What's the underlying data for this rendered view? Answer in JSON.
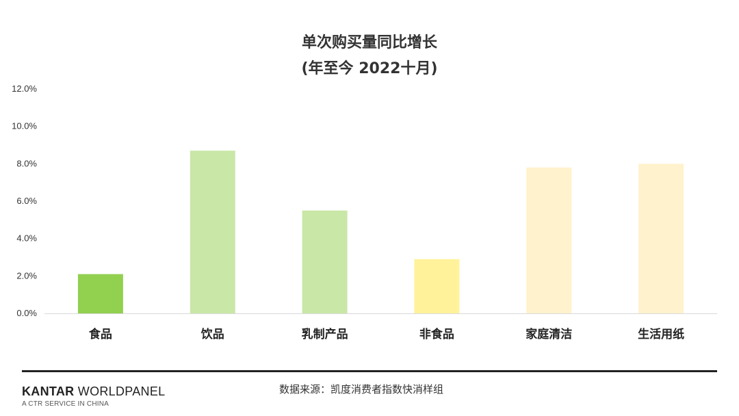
{
  "chart_data": {
    "type": "bar",
    "title": "单次购买量同比增长",
    "subtitle": "(年至今 2022十月)",
    "categories": [
      "食品",
      "饮品",
      "乳制产品",
      "非食品",
      "家庭清洁",
      "生活用纸"
    ],
    "values": [
      2.1,
      8.7,
      5.5,
      2.9,
      7.8,
      8.0
    ],
    "bar_colors": [
      "#92d050",
      "#c9e7a7",
      "#c9e7a7",
      "#fff29b",
      "#fff2cc",
      "#fff2cc"
    ],
    "ylim": [
      0,
      12
    ],
    "yticks": [
      0,
      2,
      4,
      6,
      8,
      10,
      12
    ],
    "ytick_labels": [
      "0.0%",
      "2.0%",
      "4.0%",
      "6.0%",
      "8.0%",
      "10.0%",
      "12.0%"
    ],
    "xlabel": "",
    "ylabel": "",
    "grid": false
  },
  "footer": {
    "brand_bold": "KANTAR",
    "brand_light": "WORLDPANEL",
    "tagline": "A CTR SERVICE IN CHINA",
    "source": "数据来源：凯度消费者指数快消样组"
  }
}
